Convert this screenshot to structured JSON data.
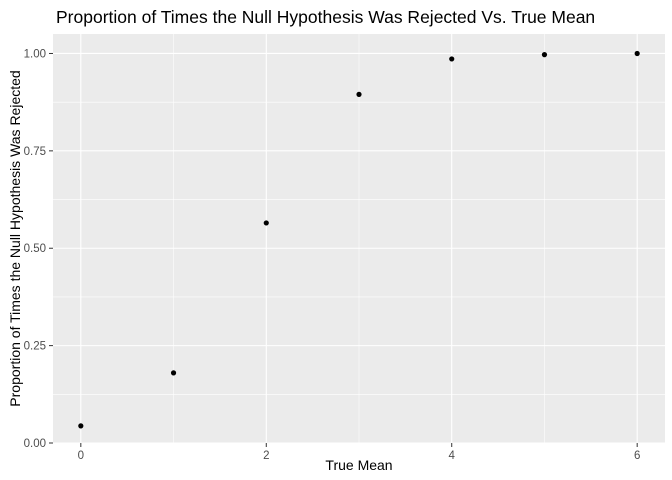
{
  "chart_data": {
    "type": "scatter",
    "title": "Proportion of Times the Null Hypothesis Was Rejected Vs. True Mean",
    "xlabel": "True Mean",
    "ylabel": "Proportion of Times the Null Hypothesis Was Rejected",
    "x": [
      0,
      1,
      2,
      3,
      4,
      5,
      6
    ],
    "y": [
      0.044,
      0.18,
      0.565,
      0.895,
      0.986,
      0.997,
      1.0
    ],
    "xlim": [
      -0.3,
      6.3
    ],
    "ylim": [
      0.0,
      1.05
    ],
    "x_ticks": [
      0,
      2,
      4,
      6
    ],
    "x_tick_labels": [
      "0",
      "2",
      "4",
      "6"
    ],
    "y_ticks": [
      0,
      0.25,
      0.5,
      0.75,
      1.0
    ],
    "y_tick_labels": [
      "0.00",
      "0.25",
      "0.50",
      "0.75",
      "1.00"
    ],
    "grid": true,
    "colors": {
      "panel_background": "#ebebeb",
      "grid_major": "#ffffff",
      "point": "#000000",
      "tick_label": "#4d4d4d"
    }
  }
}
